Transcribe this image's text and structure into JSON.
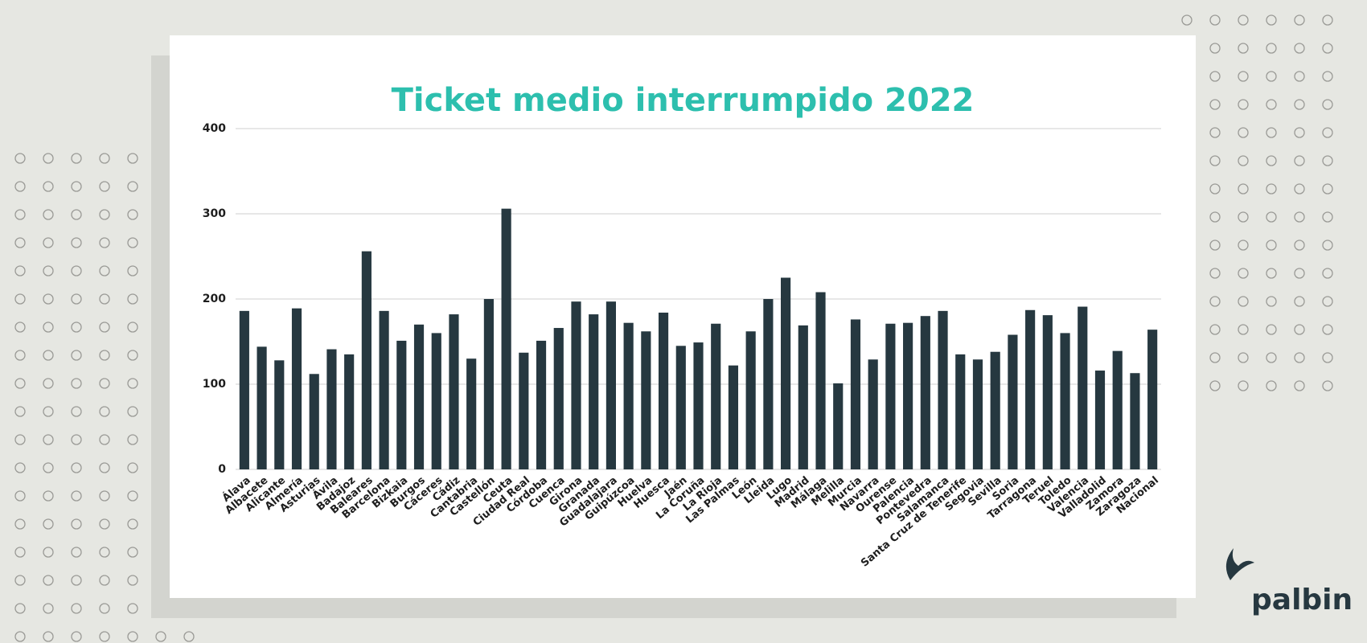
{
  "chart_data": {
    "type": "bar",
    "title": "Ticket medio interrumpido 2022",
    "categories": [
      "Álava",
      "Albacete",
      "Alicante",
      "Almería",
      "Asturias",
      "Ávila",
      "Badajoz",
      "Baleares",
      "Barcelona",
      "Bizkaia",
      "Burgos",
      "Cáceres",
      "Cádiz",
      "Cantabria",
      "Castellón",
      "Ceuta",
      "Ciudad Real",
      "Córdoba",
      "Cuenca",
      "Girona",
      "Granada",
      "Guadalajara",
      "Guipúzcoa",
      "Huelva",
      "Huesca",
      "Jaén",
      "La Coruña",
      "La Rioja",
      "Las Palmas",
      "León",
      "Lleida",
      "Lugo",
      "Madrid",
      "Málaga",
      "Melilla",
      "Murcia",
      "Navarra",
      "Ourense",
      "Palencia",
      "Pontevedra",
      "Salamanca",
      "Santa Cruz de Tenerife",
      "Segovia",
      "Sevilla",
      "Soria",
      "Tarragona",
      "Teruel",
      "Toledo",
      "Valencia",
      "Valladolid",
      "Zamora",
      "Zaragoza",
      "Nacional"
    ],
    "values": [
      186,
      144,
      128,
      189,
      112,
      141,
      135,
      256,
      186,
      151,
      170,
      160,
      182,
      130,
      200,
      306,
      137,
      151,
      166,
      197,
      182,
      197,
      172,
      162,
      184,
      145,
      149,
      171,
      122,
      162,
      200,
      225,
      169,
      208,
      101,
      176,
      129,
      171,
      172,
      180,
      186,
      135,
      129,
      138,
      158,
      187,
      181,
      160,
      191,
      116,
      139,
      113,
      164
    ],
    "color": "#263840",
    "ylim": [
      0,
      400
    ],
    "yticks": [
      0,
      100,
      200,
      300,
      400
    ],
    "grid": true
  },
  "logo": "palbin"
}
